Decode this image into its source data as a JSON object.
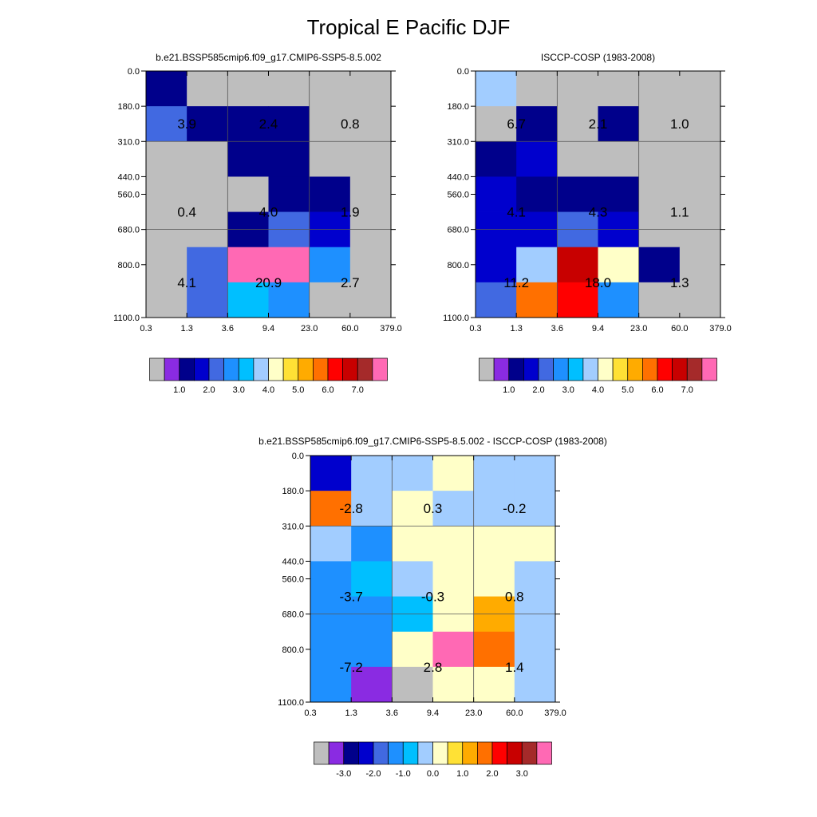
{
  "title": "Tropical E Pacific DJF",
  "chart_data": [
    {
      "type": "heatmap",
      "title": "b.e21.BSSP585cmip6.f09_g17.CMIP6-SSP5-8.5.002",
      "x_ticks": [
        "0.3",
        "1.3",
        "3.6",
        "9.4",
        "23.0",
        "60.0",
        "379.0"
      ],
      "y_ticks": [
        "0.0",
        "180.0",
        "310.0",
        "440.0",
        "560.0",
        "680.0",
        "800.0",
        "1100.0"
      ],
      "cells": [
        [
          0.5,
          0.0,
          0.0,
          0.0,
          0.0,
          0.0
        ],
        [
          1.5,
          0.7,
          0.7,
          0.5,
          0.0,
          0.0
        ],
        [
          0.0,
          0.0,
          0.5,
          0.5,
          0.0,
          0.0
        ],
        [
          0.0,
          0.0,
          0.0,
          0.5,
          0.5,
          0.0
        ],
        [
          0.0,
          0.0,
          0.5,
          1.7,
          1.3,
          0.0
        ],
        [
          0.0,
          1.7,
          7.3,
          8.0,
          2.3,
          0.0
        ],
        [
          0.0,
          1.7,
          2.7,
          2.2,
          0.0,
          0.0
        ]
      ],
      "box_labels": [
        {
          "text": "3.9",
          "col": 0.5,
          "row": 1.5
        },
        {
          "text": "2.4",
          "col": 2.5,
          "row": 1.5
        },
        {
          "text": "0.8",
          "col": 4.5,
          "row": 1.5
        },
        {
          "text": "0.4",
          "col": 0.5,
          "row": 4
        },
        {
          "text": "4.0",
          "col": 2.5,
          "row": 4
        },
        {
          "text": "1.9",
          "col": 4.5,
          "row": 4
        },
        {
          "text": "4.1",
          "col": 0.5,
          "row": 6
        },
        {
          "text": "20.9",
          "col": 2.5,
          "row": 6
        },
        {
          "text": "2.7",
          "col": 4.5,
          "row": 6
        }
      ],
      "colorbar": {
        "colors": [
          "#bebebe",
          "#8a2be2",
          "#00008b",
          "#0000cd",
          "#4169e1",
          "#1e90ff",
          "#00bfff",
          "#a2cdff",
          "#ffffc8",
          "#ffe135",
          "#ffab00",
          "#ff7000",
          "#ff0000",
          "#c80000",
          "#a52a2a",
          "#ff69b4"
        ],
        "labels": [
          {
            "text": "1.0",
            "at": 2
          },
          {
            "text": "2.0",
            "at": 4
          },
          {
            "text": "3.0",
            "at": 6
          },
          {
            "text": "4.0",
            "at": 8
          },
          {
            "text": "5.0",
            "at": 10
          },
          {
            "text": "6.0",
            "at": 12
          },
          {
            "text": "7.0",
            "at": 14
          }
        ],
        "levels": [
          0.2,
          0.5,
          1.0,
          1.5,
          2.0,
          2.5,
          3.0,
          3.5,
          4.0,
          4.5,
          5.0,
          5.5,
          6.0,
          6.5,
          7.0
        ]
      }
    },
    {
      "type": "heatmap",
      "title": "ISCCP-COSP (1983-2008)",
      "x_ticks": [
        "0.3",
        "1.3",
        "3.6",
        "9.4",
        "23.0",
        "60.0",
        "379.0"
      ],
      "y_ticks": [
        "0.0",
        "180.0",
        "310.0",
        "440.0",
        "560.0",
        "680.0",
        "800.0",
        "1100.0"
      ],
      "cells": [
        [
          3.2,
          0.0,
          0.0,
          0.0,
          0.0,
          0.0
        ],
        [
          0.0,
          0.7,
          0.0,
          0.7,
          0.0,
          0.0
        ],
        [
          0.7,
          1.2,
          0.0,
          0.0,
          0.0,
          0.0
        ],
        [
          1.2,
          0.7,
          0.7,
          0.7,
          0.0,
          0.0
        ],
        [
          1.2,
          1.2,
          1.7,
          1.2,
          0.0,
          0.0
        ],
        [
          1.2,
          3.2,
          6.2,
          3.7,
          0.7,
          0.0
        ],
        [
          1.7,
          5.2,
          5.7,
          2.2,
          0.0,
          0.0
        ]
      ],
      "box_labels": [
        {
          "text": "6.7",
          "col": 0.5,
          "row": 1.5
        },
        {
          "text": "2.1",
          "col": 2.5,
          "row": 1.5
        },
        {
          "text": "1.0",
          "col": 4.5,
          "row": 1.5
        },
        {
          "text": "4.1",
          "col": 0.5,
          "row": 4
        },
        {
          "text": "4.3",
          "col": 2.5,
          "row": 4
        },
        {
          "text": "1.1",
          "col": 4.5,
          "row": 4
        },
        {
          "text": "11.2",
          "col": 0.5,
          "row": 6
        },
        {
          "text": "18.0",
          "col": 2.5,
          "row": 6
        },
        {
          "text": "1.3",
          "col": 4.5,
          "row": 6
        }
      ],
      "colorbar": {
        "colors": [
          "#bebebe",
          "#8a2be2",
          "#00008b",
          "#0000cd",
          "#4169e1",
          "#1e90ff",
          "#00bfff",
          "#a2cdff",
          "#ffffc8",
          "#ffe135",
          "#ffab00",
          "#ff7000",
          "#ff0000",
          "#c80000",
          "#a52a2a",
          "#ff69b4"
        ],
        "labels": [
          {
            "text": "1.0",
            "at": 2
          },
          {
            "text": "2.0",
            "at": 4
          },
          {
            "text": "3.0",
            "at": 6
          },
          {
            "text": "4.0",
            "at": 8
          },
          {
            "text": "5.0",
            "at": 10
          },
          {
            "text": "6.0",
            "at": 12
          },
          {
            "text": "7.0",
            "at": 14
          }
        ],
        "levels": [
          0.2,
          0.5,
          1.0,
          1.5,
          2.0,
          2.5,
          3.0,
          3.5,
          4.0,
          4.5,
          5.0,
          5.5,
          6.0,
          6.5,
          7.0
        ]
      }
    },
    {
      "type": "heatmap",
      "title": "b.e21.BSSP585cmip6.f09_g17.CMIP6-SSP5-8.5.002 - ISCCP-COSP (1983-2008)",
      "x_ticks": [
        "0.3",
        "1.3",
        "3.6",
        "9.4",
        "23.0",
        "60.0",
        "379.0"
      ],
      "y_ticks": [
        "0.0",
        "180.0",
        "310.0",
        "440.0",
        "560.0",
        "680.0",
        "800.0",
        "1100.0"
      ],
      "cells": [
        [
          -2.2,
          -0.2,
          -0.2,
          0.2,
          -0.2,
          -0.2
        ],
        [
          1.7,
          -0.2,
          0.2,
          -0.2,
          -0.2,
          -0.2
        ],
        [
          -0.2,
          -1.2,
          0.2,
          0.2,
          0.2,
          0.2
        ],
        [
          -1.2,
          -0.7,
          -0.2,
          0.2,
          0.2,
          -0.2
        ],
        [
          -1.2,
          -1.2,
          -0.7,
          0.2,
          1.2,
          -0.2
        ],
        [
          -1.2,
          -1.2,
          0.2,
          3.7,
          1.7,
          -0.2
        ],
        [
          -1.2,
          -3.2,
          -3.7,
          0.2,
          0.2,
          -0.2
        ]
      ],
      "box_labels": [
        {
          "text": "-2.8",
          "col": 0.5,
          "row": 1.5
        },
        {
          "text": "0.3",
          "col": 2.5,
          "row": 1.5
        },
        {
          "text": "-0.2",
          "col": 4.5,
          "row": 1.5
        },
        {
          "text": "-3.7",
          "col": 0.5,
          "row": 4
        },
        {
          "text": "-0.3",
          "col": 2.5,
          "row": 4
        },
        {
          "text": "0.8",
          "col": 4.5,
          "row": 4
        },
        {
          "text": "-7.2",
          "col": 0.5,
          "row": 6
        },
        {
          "text": "2.8",
          "col": 2.5,
          "row": 6
        },
        {
          "text": "1.4",
          "col": 4.5,
          "row": 6
        }
      ],
      "colorbar": {
        "colors": [
          "#bebebe",
          "#8a2be2",
          "#00008b",
          "#0000cd",
          "#4169e1",
          "#1e90ff",
          "#00bfff",
          "#a2cdff",
          "#ffffc8",
          "#ffe135",
          "#ffab00",
          "#ff7000",
          "#ff0000",
          "#c80000",
          "#a52a2a",
          "#ff69b4"
        ],
        "labels": [
          {
            "text": "-3.0",
            "at": 2
          },
          {
            "text": "-2.0",
            "at": 4
          },
          {
            "text": "-1.0",
            "at": 6
          },
          {
            "text": "0.0",
            "at": 8
          },
          {
            "text": "1.0",
            "at": 10
          },
          {
            "text": "2.0",
            "at": 12
          },
          {
            "text": "3.0",
            "at": 14
          }
        ],
        "levels": [
          -3.5,
          -3.0,
          -2.5,
          -2.0,
          -1.5,
          -1.0,
          -0.5,
          0.0,
          0.5,
          1.0,
          1.5,
          2.0,
          2.5,
          3.0,
          3.5
        ]
      }
    }
  ]
}
